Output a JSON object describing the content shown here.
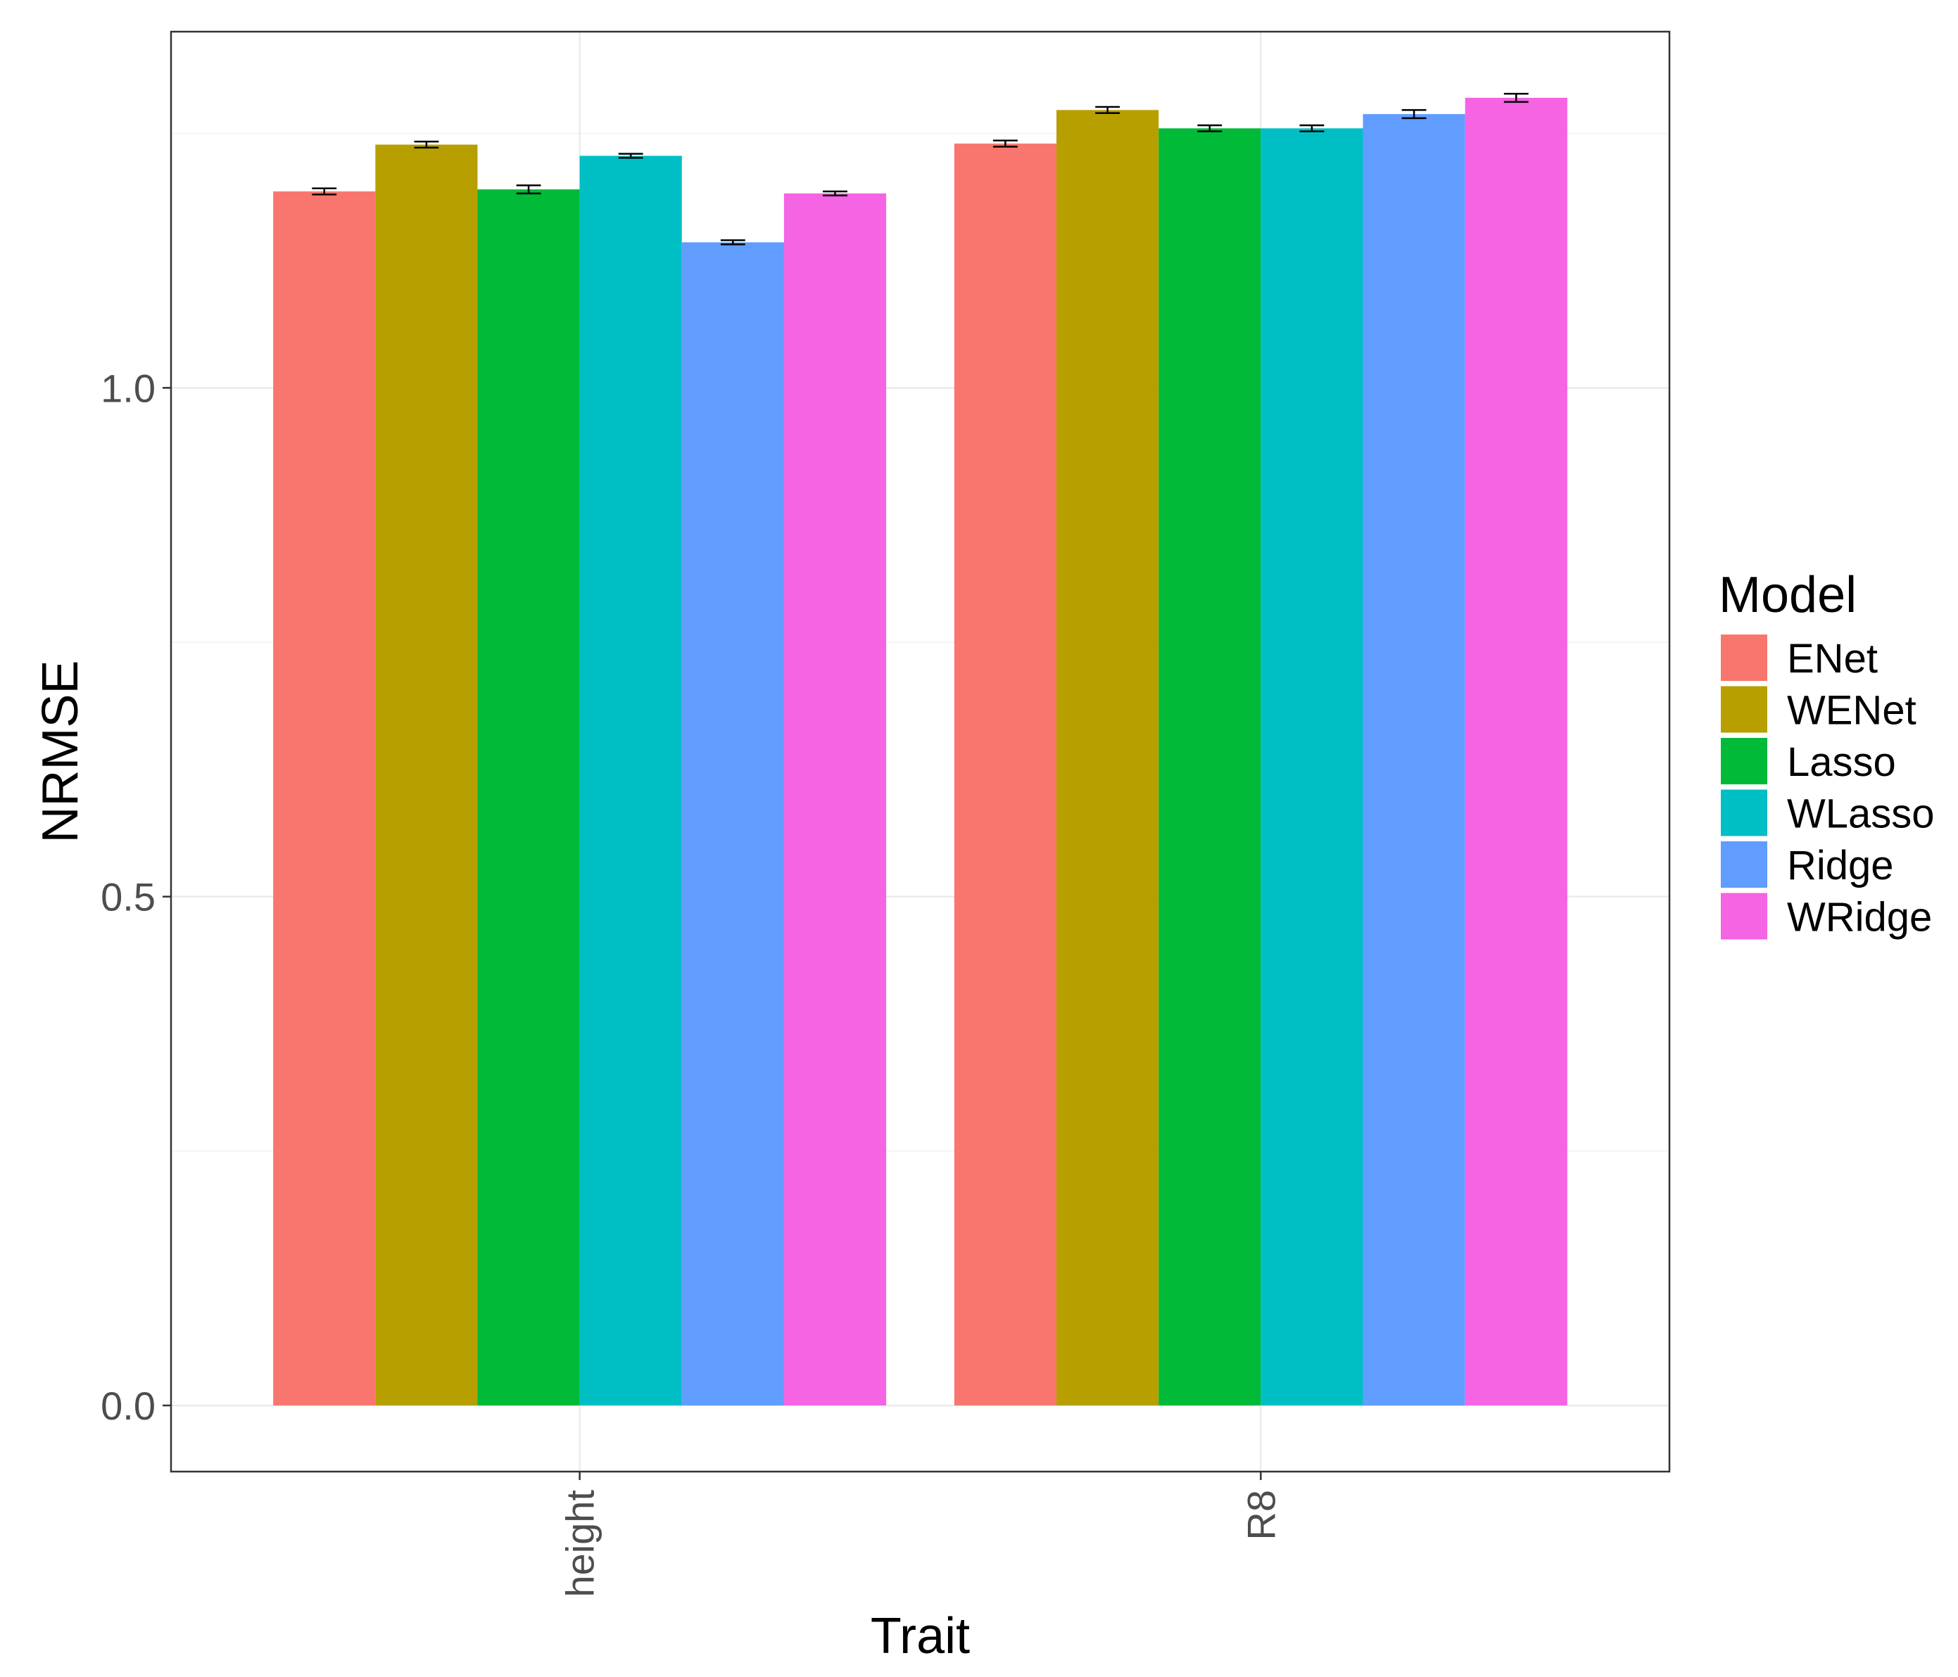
{
  "chart_data": {
    "type": "bar",
    "xlabel": "Trait",
    "ylabel": "NRMSE",
    "categories": [
      "height",
      "R8"
    ],
    "ylim": [
      -0.065,
      1.35
    ],
    "y_ticks": [
      "0.0",
      "0.5",
      "1.0"
    ],
    "y_tick_values": [
      0.0,
      0.5,
      1.0
    ],
    "y_minor_values": [
      0.25,
      0.75,
      1.25
    ],
    "grid": true,
    "legend": {
      "title": "Model",
      "position": "right"
    },
    "series": [
      {
        "name": "ENet",
        "color": "#F8766D",
        "values": [
          1.193,
          1.24
        ],
        "errors": [
          0.003,
          0.003
        ]
      },
      {
        "name": "WENet",
        "color": "#B79F00",
        "values": [
          1.239,
          1.273
        ],
        "errors": [
          0.003,
          0.003
        ]
      },
      {
        "name": "Lasso",
        "color": "#00BA38",
        "values": [
          1.195,
          1.255
        ],
        "errors": [
          0.004,
          0.003
        ]
      },
      {
        "name": "WLasso",
        "color": "#00BFC4",
        "values": [
          1.228,
          1.255
        ],
        "errors": [
          0.002,
          0.003
        ]
      },
      {
        "name": "Ridge",
        "color": "#619CFF",
        "values": [
          1.143,
          1.269
        ],
        "errors": [
          0.002,
          0.004
        ]
      },
      {
        "name": "WRidge",
        "color": "#F564E3",
        "values": [
          1.191,
          1.285
        ],
        "errors": [
          0.002,
          0.004
        ]
      }
    ]
  }
}
